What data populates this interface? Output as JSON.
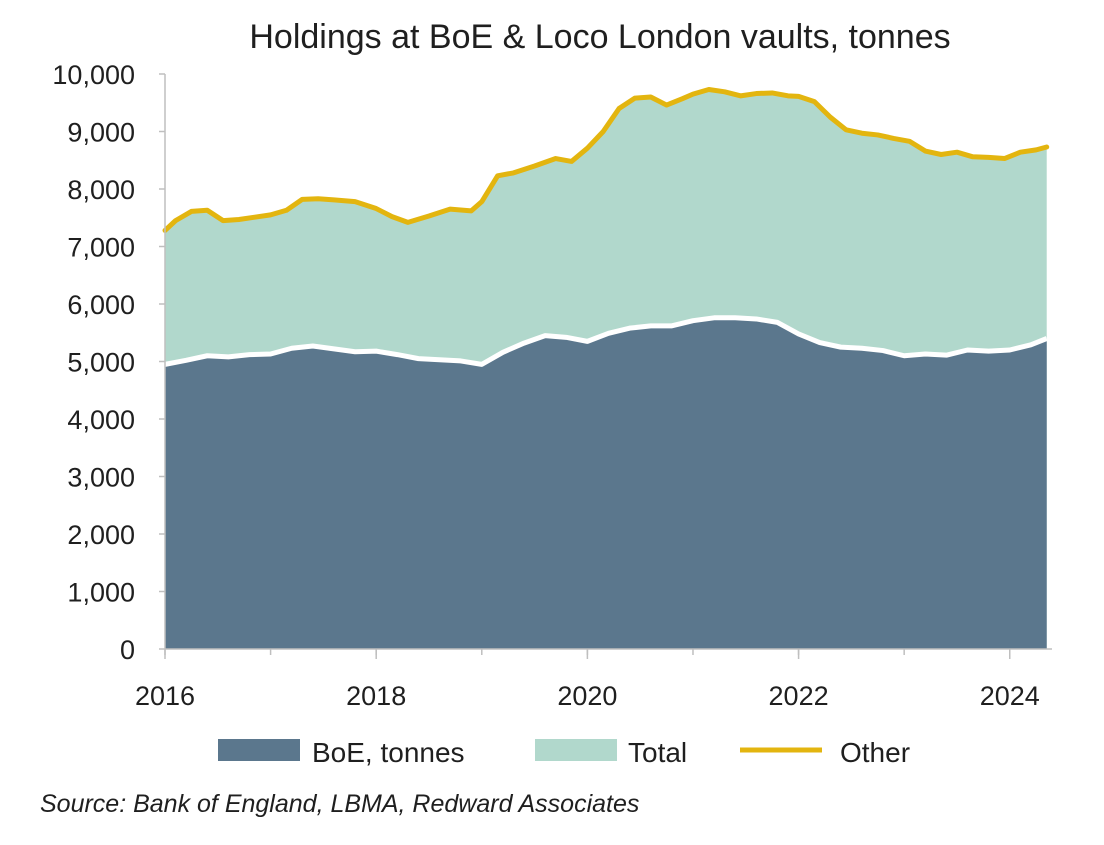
{
  "chart_data": {
    "type": "area",
    "title": "Holdings at BoE & Loco London vaults, tonnes",
    "xlabel": "",
    "ylabel": "",
    "ylim": [
      0,
      10000
    ],
    "xlim": [
      2016,
      2024.4
    ],
    "x_ticks": [
      "2016",
      "2018",
      "2020",
      "2022",
      "2024"
    ],
    "y_ticks": [
      "0",
      "1,000",
      "2,000",
      "3,000",
      "4,000",
      "5,000",
      "6,000",
      "7,000",
      "8,000",
      "9,000",
      "10,000"
    ],
    "grid": false,
    "legend_position": "bottom",
    "colors": {
      "boe": "#5b778d",
      "total": "#b1d8cc",
      "other": "#e3b50f"
    },
    "series": [
      {
        "name": "BoE, tonnes",
        "x": [
          2016.0,
          2016.2,
          2016.4,
          2016.6,
          2016.8,
          2017.0,
          2017.2,
          2017.4,
          2017.6,
          2017.8,
          2018.0,
          2018.2,
          2018.4,
          2018.6,
          2018.8,
          2019.0,
          2019.2,
          2019.4,
          2019.6,
          2019.8,
          2020.0,
          2020.2,
          2020.4,
          2020.6,
          2020.8,
          2021.0,
          2021.2,
          2021.4,
          2021.6,
          2021.8,
          2022.0,
          2022.2,
          2022.4,
          2022.6,
          2022.8,
          2023.0,
          2023.2,
          2023.4,
          2023.6,
          2023.8,
          2024.0,
          2024.2,
          2024.35
        ],
        "values": [
          4950,
          5020,
          5100,
          5080,
          5120,
          5130,
          5230,
          5270,
          5220,
          5170,
          5180,
          5120,
          5050,
          5030,
          5010,
          4950,
          5160,
          5320,
          5450,
          5420,
          5350,
          5490,
          5580,
          5620,
          5620,
          5710,
          5760,
          5760,
          5740,
          5680,
          5480,
          5330,
          5250,
          5230,
          5190,
          5100,
          5130,
          5110,
          5200,
          5180,
          5200,
          5290,
          5400
        ]
      },
      {
        "name": "Total",
        "x": [
          2016.0,
          2016.1,
          2016.25,
          2016.4,
          2016.55,
          2016.7,
          2016.85,
          2017.0,
          2017.15,
          2017.3,
          2017.45,
          2017.6,
          2017.8,
          2018.0,
          2018.15,
          2018.3,
          2018.5,
          2018.7,
          2018.9,
          2019.0,
          2019.15,
          2019.3,
          2019.5,
          2019.7,
          2019.85,
          2020.0,
          2020.15,
          2020.3,
          2020.45,
          2020.6,
          2020.75,
          2020.9,
          2021.0,
          2021.15,
          2021.3,
          2021.45,
          2021.6,
          2021.75,
          2021.9,
          2022.0,
          2022.15,
          2022.3,
          2022.45,
          2022.6,
          2022.75,
          2022.9,
          2023.05,
          2023.2,
          2023.35,
          2023.5,
          2023.65,
          2023.8,
          2023.95,
          2024.1,
          2024.25,
          2024.35
        ],
        "values": [
          7280,
          7450,
          7610,
          7630,
          7450,
          7470,
          7510,
          7550,
          7630,
          7820,
          7830,
          7810,
          7780,
          7660,
          7520,
          7420,
          7530,
          7650,
          7620,
          7780,
          8230,
          8280,
          8400,
          8530,
          8480,
          8710,
          9000,
          9400,
          9580,
          9600,
          9460,
          9570,
          9650,
          9730,
          9690,
          9620,
          9660,
          9670,
          9620,
          9610,
          9520,
          9250,
          9030,
          8970,
          8940,
          8880,
          8830,
          8660,
          8600,
          8640,
          8560,
          8550,
          8530,
          8640,
          8680,
          8730
        ]
      },
      {
        "name": "Other",
        "x": [
          2016.0,
          2016.1,
          2016.25,
          2016.4,
          2016.55,
          2016.7,
          2016.85,
          2017.0,
          2017.15,
          2017.3,
          2017.45,
          2017.6,
          2017.8,
          2018.0,
          2018.15,
          2018.3,
          2018.5,
          2018.7,
          2018.9,
          2019.0,
          2019.15,
          2019.3,
          2019.5,
          2019.7,
          2019.85,
          2020.0,
          2020.15,
          2020.3,
          2020.45,
          2020.6,
          2020.75,
          2020.9,
          2021.0,
          2021.15,
          2021.3,
          2021.45,
          2021.6,
          2021.75,
          2021.9,
          2022.0,
          2022.15,
          2022.3,
          2022.45,
          2022.6,
          2022.75,
          2022.9,
          2023.05,
          2023.2,
          2023.35,
          2023.5,
          2023.65,
          2023.8,
          2023.95,
          2024.1,
          2024.25,
          2024.35
        ],
        "values": [
          7280,
          7450,
          7610,
          7630,
          7450,
          7470,
          7510,
          7550,
          7630,
          7820,
          7830,
          7810,
          7780,
          7660,
          7520,
          7420,
          7530,
          7650,
          7620,
          7780,
          8230,
          8280,
          8400,
          8530,
          8480,
          8710,
          9000,
          9400,
          9580,
          9600,
          9460,
          9570,
          9650,
          9730,
          9690,
          9620,
          9660,
          9670,
          9620,
          9610,
          9520,
          9250,
          9030,
          8970,
          8940,
          8880,
          8830,
          8660,
          8600,
          8640,
          8560,
          8550,
          8530,
          8640,
          8680,
          8730
        ]
      }
    ],
    "source": "Source: Bank of England, LBMA, Redward Associates"
  }
}
